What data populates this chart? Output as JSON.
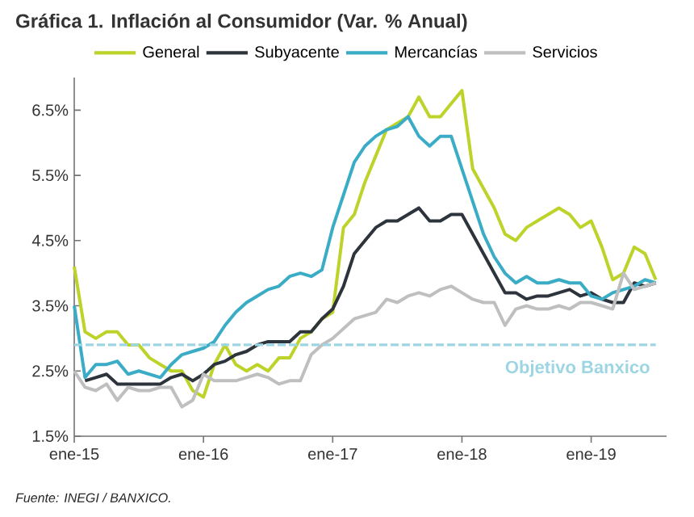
{
  "chart_data": {
    "type": "line",
    "title": "Gráfica 1. Inflación al Consumidor (Var. % Anual)",
    "x": [
      "2015-01",
      "2015-02",
      "2015-03",
      "2015-04",
      "2015-05",
      "2015-06",
      "2015-07",
      "2015-08",
      "2015-09",
      "2015-10",
      "2015-11",
      "2015-12",
      "2016-01",
      "2016-02",
      "2016-03",
      "2016-04",
      "2016-05",
      "2016-06",
      "2016-07",
      "2016-08",
      "2016-09",
      "2016-10",
      "2016-11",
      "2016-12",
      "2017-01",
      "2017-02",
      "2017-03",
      "2017-04",
      "2017-05",
      "2017-06",
      "2017-07",
      "2017-08",
      "2017-09",
      "2017-10",
      "2017-11",
      "2017-12",
      "2018-01",
      "2018-02",
      "2018-03",
      "2018-04",
      "2018-05",
      "2018-06",
      "2018-07",
      "2018-08",
      "2018-09",
      "2018-10",
      "2018-11",
      "2018-12",
      "2019-01",
      "2019-02",
      "2019-03",
      "2019-04",
      "2019-05",
      "2019-06",
      "2019-07"
    ],
    "series": [
      {
        "name": "General",
        "color": "#bdd32a",
        "values": [
          4.1,
          3.1,
          3.0,
          3.1,
          3.1,
          2.9,
          2.9,
          2.7,
          2.6,
          2.5,
          2.5,
          2.2,
          2.1,
          2.6,
          2.9,
          2.6,
          2.5,
          2.6,
          2.5,
          2.7,
          2.7,
          3.0,
          3.1,
          3.3,
          3.4,
          4.7,
          4.9,
          5.4,
          5.8,
          6.2,
          6.3,
          6.4,
          6.7,
          6.4,
          6.4,
          6.6,
          6.8,
          5.6,
          5.3,
          5.0,
          4.6,
          4.5,
          4.7,
          4.8,
          4.9,
          5.0,
          4.9,
          4.7,
          4.8,
          4.4,
          3.9,
          4.0,
          4.4,
          4.3,
          3.9
        ]
      },
      {
        "name": "Subyacente",
        "color": "#2d343c",
        "values": [
          null,
          2.35,
          2.4,
          2.45,
          2.3,
          2.3,
          2.3,
          2.3,
          2.3,
          2.4,
          2.45,
          2.35,
          2.45,
          2.6,
          2.65,
          2.75,
          2.8,
          2.9,
          2.95,
          2.95,
          2.95,
          3.1,
          3.1,
          3.3,
          3.45,
          3.8,
          4.3,
          4.5,
          4.7,
          4.8,
          4.8,
          4.9,
          5.0,
          4.8,
          4.8,
          4.9,
          4.9,
          4.6,
          4.3,
          4.0,
          3.7,
          3.7,
          3.6,
          3.65,
          3.65,
          3.7,
          3.75,
          3.65,
          3.7,
          3.6,
          3.55,
          3.55,
          3.85,
          3.8,
          3.85
        ]
      },
      {
        "name": "Mercancías",
        "color": "#3aacc6",
        "values": [
          3.5,
          2.4,
          2.6,
          2.6,
          2.65,
          2.45,
          2.5,
          2.45,
          2.4,
          2.6,
          2.75,
          2.8,
          2.85,
          2.95,
          3.2,
          3.4,
          3.55,
          3.65,
          3.75,
          3.8,
          3.95,
          4.0,
          3.95,
          4.05,
          4.7,
          5.2,
          5.7,
          5.95,
          6.1,
          6.2,
          6.25,
          6.4,
          6.1,
          5.95,
          6.1,
          6.1,
          5.6,
          5.1,
          4.6,
          4.25,
          4.0,
          3.85,
          3.95,
          3.85,
          3.85,
          3.9,
          3.85,
          3.85,
          3.65,
          3.6,
          3.7,
          3.75,
          3.8,
          3.9,
          3.85
        ]
      },
      {
        "name": "Servicios",
        "color": "#bfbfbf",
        "values": [
          2.5,
          2.25,
          2.2,
          2.3,
          2.05,
          2.25,
          2.2,
          2.2,
          2.25,
          2.25,
          1.95,
          2.05,
          2.45,
          2.35,
          2.35,
          2.35,
          2.4,
          2.45,
          2.4,
          2.3,
          2.35,
          2.35,
          2.75,
          2.9,
          3.0,
          3.15,
          3.3,
          3.35,
          3.4,
          3.6,
          3.55,
          3.65,
          3.7,
          3.65,
          3.75,
          3.8,
          3.7,
          3.6,
          3.55,
          3.55,
          3.2,
          3.45,
          3.5,
          3.45,
          3.45,
          3.5,
          3.45,
          3.55,
          3.55,
          3.5,
          3.45,
          4.0,
          3.75,
          3.8,
          3.85
        ]
      }
    ],
    "xlim": [
      "2015-01",
      "2019-08"
    ],
    "xticks": [
      {
        "value": "2015-01",
        "label": "ene-15"
      },
      {
        "value": "2016-01",
        "label": "ene-16"
      },
      {
        "value": "2017-01",
        "label": "ene-17"
      },
      {
        "value": "2018-01",
        "label": "ene-18"
      },
      {
        "value": "2019-01",
        "label": "ene-19"
      }
    ],
    "ylim": [
      1.5,
      7.0
    ],
    "yticks": [
      {
        "value": 1.5,
        "label": "1.5%"
      },
      {
        "value": 2.5,
        "label": "2.5%"
      },
      {
        "value": 3.5,
        "label": "3.5%"
      },
      {
        "value": 4.5,
        "label": "4.5%"
      },
      {
        "value": 5.5,
        "label": "5.5%"
      },
      {
        "value": 6.5,
        "label": "6.5%"
      }
    ],
    "ref_lines": [
      {
        "axis": "y",
        "value": 2.9,
        "label": "Objetivo Banxico",
        "color": "#9dd5e3",
        "line_style": "dashed"
      }
    ],
    "annotations": [
      "Fuente: INEGI / BANXICO."
    ],
    "legend": "top",
    "grid": false,
    "marker": "none",
    "line_style": "solid"
  }
}
